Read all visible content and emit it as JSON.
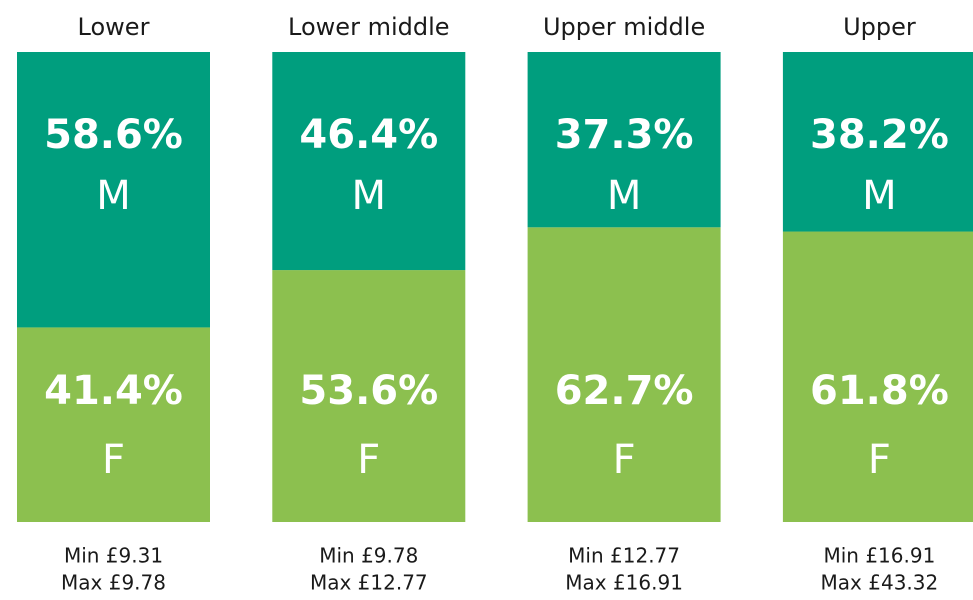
{
  "chart_data": {
    "type": "stacked_bar",
    "categories": [
      "Lower",
      "Lower middle",
      "Upper middle",
      "Upper"
    ],
    "series": [
      {
        "name": "M",
        "color": "#009e7e",
        "values": [
          58.6,
          46.4,
          37.3,
          38.2
        ],
        "value_labels": [
          "58.6%",
          "46.4%",
          "37.3%",
          "38.2%"
        ]
      },
      {
        "name": "F",
        "color": "#8cc04f",
        "values": [
          41.4,
          53.6,
          62.7,
          61.8
        ],
        "value_labels": [
          "41.4%",
          "53.6%",
          "62.7%",
          "61.8%"
        ]
      }
    ],
    "ylim": [
      0,
      100
    ],
    "min_labels": [
      "Min £9.31",
      "Min £9.78",
      "Min £12.77",
      "Min £16.91"
    ],
    "max_labels": [
      "Max £9.78",
      "Max £12.77",
      "Max £16.91",
      "Max £43.32"
    ]
  }
}
